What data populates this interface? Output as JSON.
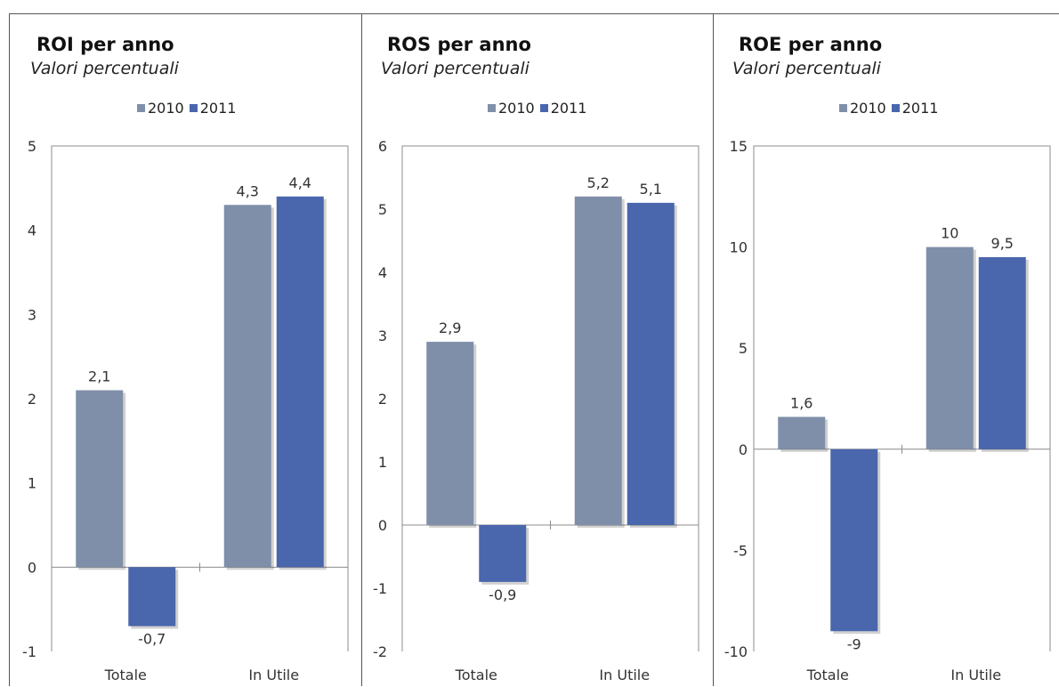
{
  "colors": {
    "2010": "#7F8FA9",
    "2011": "#4A66AC"
  },
  "chart_data": [
    {
      "type": "bar",
      "title": "ROI per anno",
      "subtitle": "Valori percentuali",
      "categories": [
        "Totale",
        "In Utile"
      ],
      "series": [
        {
          "name": "2010",
          "values": [
            2.1,
            4.3
          ],
          "labels": [
            "2,1",
            "4,3"
          ]
        },
        {
          "name": "2011",
          "values": [
            -0.7,
            4.4
          ],
          "labels": [
            "-0,7",
            "4,4"
          ]
        }
      ],
      "ylim": [
        -1,
        5
      ],
      "yticks": [
        -1,
        0,
        1,
        2,
        3,
        4,
        5
      ],
      "ytick_labels": [
        "-1",
        "0",
        "1",
        "2",
        "3",
        "4",
        "5"
      ],
      "legend": "top-center",
      "grid": false
    },
    {
      "type": "bar",
      "title": "ROS per anno",
      "subtitle": "Valori percentuali",
      "categories": [
        "Totale",
        "In Utile"
      ],
      "series": [
        {
          "name": "2010",
          "values": [
            2.9,
            5.2
          ],
          "labels": [
            "2,9",
            "5,2"
          ]
        },
        {
          "name": "2011",
          "values": [
            -0.9,
            5.1
          ],
          "labels": [
            "-0,9",
            "5,1"
          ]
        }
      ],
      "ylim": [
        -2,
        6
      ],
      "yticks": [
        -2,
        -1,
        0,
        1,
        2,
        3,
        4,
        5,
        6
      ],
      "ytick_labels": [
        "-2",
        "-1",
        "0",
        "1",
        "2",
        "3",
        "4",
        "5",
        "6"
      ],
      "legend": "top-center",
      "grid": false
    },
    {
      "type": "bar",
      "title": "ROE per anno",
      "subtitle": "Valori percentuali",
      "categories": [
        "Totale",
        "In Utile"
      ],
      "series": [
        {
          "name": "2010",
          "values": [
            1.6,
            10
          ],
          "labels": [
            "1,6",
            "10"
          ]
        },
        {
          "name": "2011",
          "values": [
            -9,
            9.5
          ],
          "labels": [
            "-9",
            "9,5"
          ]
        }
      ],
      "ylim": [
        -10,
        15
      ],
      "yticks": [
        -10,
        -5,
        0,
        5,
        10,
        15
      ],
      "ytick_labels": [
        "-10",
        "-5",
        "0",
        "5",
        "10",
        "15"
      ],
      "legend": "top-center",
      "grid": false
    }
  ]
}
